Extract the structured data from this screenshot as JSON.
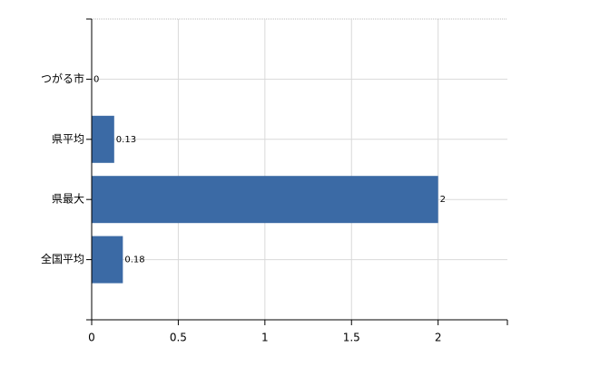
{
  "chart_data": {
    "type": "bar",
    "orientation": "horizontal",
    "categories": [
      "つがる市",
      "県平均",
      "県最大",
      "全国平均"
    ],
    "values": [
      0,
      0.13,
      2,
      0.18
    ],
    "color": "#3b6aa5",
    "xlim": [
      0,
      2.4
    ],
    "xticks": [
      0,
      0.5,
      1,
      1.5,
      2
    ],
    "grid": true
  }
}
